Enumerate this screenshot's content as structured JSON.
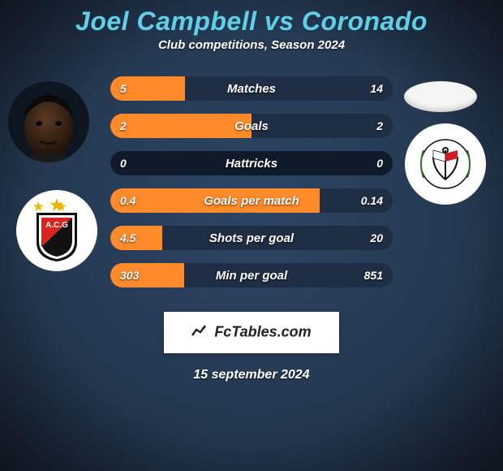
{
  "background": {
    "color_top": "#1c2b3e",
    "color_mid": "#253952",
    "color_bottom": "#2d4566",
    "vignette": "rgba(0,0,0,0.55)"
  },
  "title": {
    "text": "Joel Campbell vs Coronado",
    "color": "#5fd0e8",
    "fontsize": 32
  },
  "subtitle": {
    "text": "Club competitions, Season 2024",
    "color": "#ffffff",
    "fontsize": 15
  },
  "player_left": {
    "name": "Joel Campbell",
    "skin": "#3a2415",
    "has_photo": true
  },
  "player_right": {
    "name": "Coronado",
    "has_photo": false
  },
  "club_left": {
    "name": "Atlético Goianiense",
    "abbrev": "A.C.G",
    "shield_top": "#d9241f",
    "shield_bottom": "#111111",
    "shield_border": "#111111",
    "star_color": "#e6b800"
  },
  "club_right": {
    "name": "Corinthians",
    "ring": "#111111",
    "anchor": "#111111",
    "flag_red": "#d01c1f",
    "flag_white": "#ffffff"
  },
  "bars": {
    "track_color": "#0f1b2b",
    "left_fill_color": "#ff8a2a",
    "right_fill_color": "#1f2e44",
    "rows": [
      {
        "label": "Matches",
        "left_val": "5",
        "right_val": "14",
        "left_num": 5,
        "right_num": 14
      },
      {
        "label": "Goals",
        "left_val": "2",
        "right_val": "2",
        "left_num": 2,
        "right_num": 2
      },
      {
        "label": "Hattricks",
        "left_val": "0",
        "right_val": "0",
        "left_num": 0,
        "right_num": 0
      },
      {
        "label": "Goals per match",
        "left_val": "0.4",
        "right_val": "0.14",
        "left_num": 0.4,
        "right_num": 0.14
      },
      {
        "label": "Shots per goal",
        "left_val": "4.5",
        "right_val": "20",
        "left_num": 4.5,
        "right_num": 20
      },
      {
        "label": "Min per goal",
        "left_val": "303",
        "right_val": "851",
        "left_num": 303,
        "right_num": 851
      }
    ]
  },
  "brand": {
    "text": "FcTables.com",
    "box_bg": "#ffffff",
    "text_color": "#222222"
  },
  "date": {
    "text": "15 september 2024",
    "color": "#ffffff"
  }
}
